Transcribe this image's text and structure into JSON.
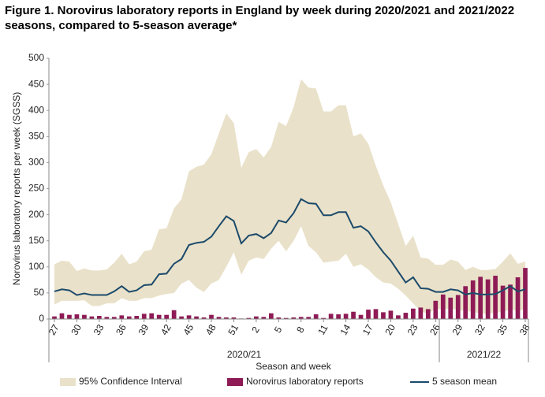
{
  "chart_data": {
    "type": "combo",
    "title": "Figure 1. Norovirus laboratory reports in England by week during 2020/2021 and 2021/2022 seasons, compared to 5-season average*",
    "x_label": "Season and week",
    "y_label": "Norovirus laboratory reports per week (SGSS)",
    "groups": [
      "2020/21",
      "2021/22"
    ],
    "categories": [
      "27",
      null,
      null,
      "30",
      null,
      null,
      "33",
      null,
      null,
      "36",
      null,
      null,
      "39",
      null,
      null,
      "42",
      null,
      null,
      "45",
      null,
      null,
      "48",
      null,
      null,
      "51",
      null,
      null,
      "2",
      null,
      null,
      "5",
      null,
      null,
      "8",
      null,
      null,
      "11",
      null,
      null,
      "14",
      null,
      null,
      "17",
      null,
      null,
      "20",
      null,
      null,
      "23",
      null,
      null,
      "26",
      null,
      null,
      "29",
      null,
      null,
      "32",
      null,
      null,
      "35",
      null,
      null,
      "38"
    ],
    "ylim": [
      0,
      500
    ],
    "yticks": [
      0,
      50,
      100,
      150,
      200,
      250,
      300,
      350,
      400,
      450,
      500
    ],
    "series": [
      {
        "name": "95% Confidence Interval",
        "type": "band",
        "color": "#e9e1c9",
        "low": [
          28,
          35,
          35,
          35,
          36,
          25,
          25,
          30,
          30,
          40,
          35,
          35,
          40,
          40,
          45,
          48,
          50,
          68,
          75,
          60,
          52,
          68,
          75,
          100,
          128,
          85,
          112,
          118,
          115,
          135,
          150,
          130,
          150,
          178,
          140,
          128,
          108,
          110,
          112,
          125,
          100,
          105,
          95,
          80,
          70,
          68,
          58,
          45,
          30,
          15,
          10,
          20,
          18,
          20,
          18,
          15,
          14,
          10,
          10,
          12,
          14,
          18,
          16,
          18
        ],
        "high": [
          105,
          112,
          110,
          92,
          97,
          93,
          93,
          95,
          108,
          125,
          105,
          110,
          130,
          133,
          172,
          174,
          212,
          230,
          283,
          292,
          296,
          316,
          356,
          394,
          376,
          290,
          320,
          326,
          310,
          330,
          378,
          370,
          406,
          460,
          444,
          442,
          398,
          398,
          410,
          410,
          350,
          356,
          336,
          294,
          256,
          224,
          182,
          140,
          160,
          118,
          116,
          104,
          104,
          114,
          110,
          94,
          100,
          94,
          94,
          96,
          110,
          126,
          106,
          110
        ]
      },
      {
        "name": "Norovirus laboratory reports",
        "type": "bar",
        "color": "#8e1b55",
        "values": [
          5,
          11,
          8,
          9,
          8,
          5,
          6,
          4,
          4,
          7,
          5,
          6,
          10,
          11,
          8,
          8,
          17,
          5,
          7,
          5,
          3,
          8,
          4,
          3,
          3,
          1,
          2,
          5,
          4,
          11,
          3,
          2,
          3,
          4,
          4,
          9,
          2,
          10,
          9,
          10,
          14,
          8,
          18,
          19,
          13,
          16,
          7,
          12,
          20,
          22,
          19,
          35,
          47,
          41,
          46,
          63,
          74,
          81,
          76,
          83,
          64,
          66,
          80,
          98
        ]
      },
      {
        "name": "5 season mean",
        "type": "line",
        "color": "#1b4a6b",
        "values": [
          53,
          57,
          55,
          46,
          49,
          46,
          46,
          46,
          53,
          63,
          52,
          55,
          65,
          66,
          86,
          87,
          106,
          115,
          142,
          146,
          148,
          158,
          178,
          197,
          188,
          145,
          160,
          163,
          155,
          165,
          189,
          185,
          203,
          230,
          222,
          221,
          199,
          199,
          205,
          205,
          175,
          178,
          168,
          147,
          128,
          112,
          91,
          70,
          80,
          59,
          58,
          52,
          52,
          57,
          55,
          47,
          50,
          47,
          47,
          48,
          55,
          63,
          53,
          57
        ]
      }
    ]
  }
}
